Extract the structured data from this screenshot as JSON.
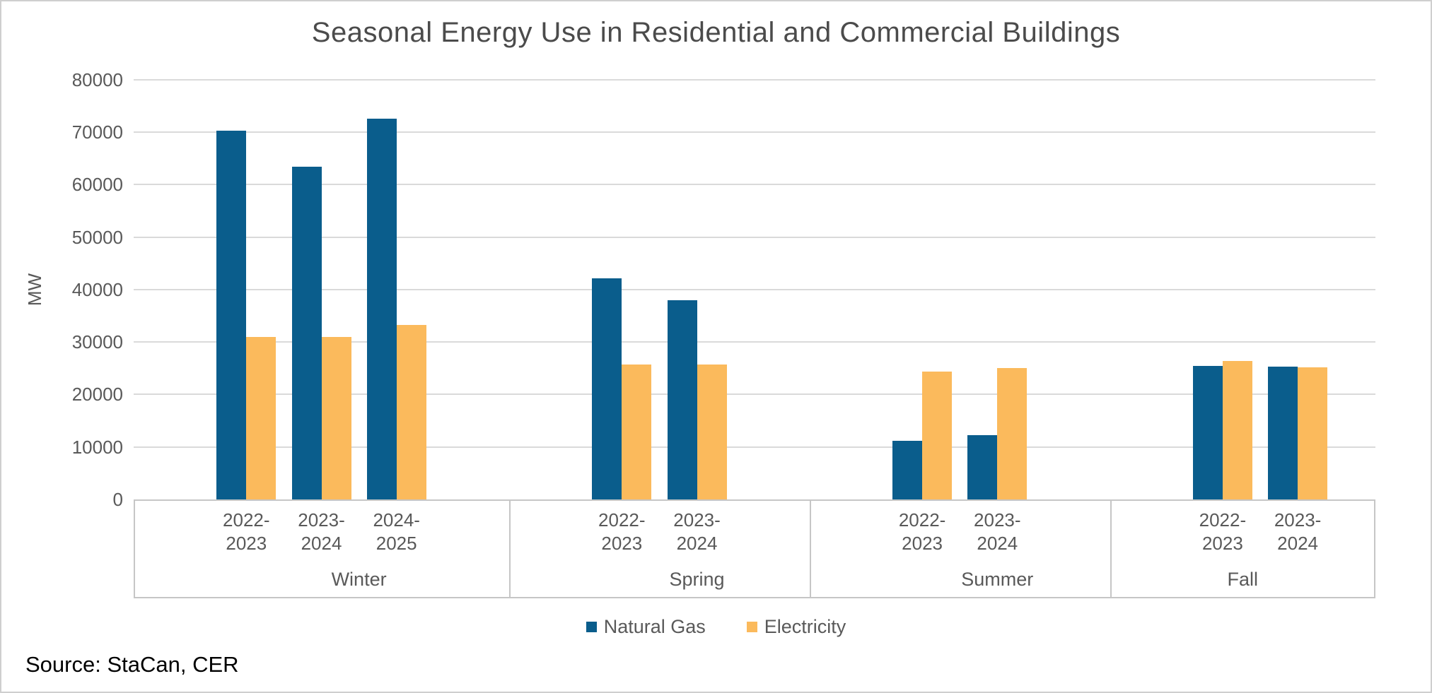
{
  "title": "Seasonal Energy Use in Residential and Commercial Buildings",
  "source_note": "Source: StaCan, CER",
  "y_axis": {
    "label": "MW",
    "tick_labels": [
      "80000",
      "70000",
      "60000",
      "50000",
      "40000",
      "30000",
      "20000",
      "10000",
      "0"
    ]
  },
  "legend": {
    "items": [
      {
        "label": "Natural Gas",
        "color": "#0a5d8c"
      },
      {
        "label": "Electricity",
        "color": "#fbba5c"
      }
    ]
  },
  "colors": {
    "natural_gas": "#0a5d8c",
    "electricity": "#fbba5c",
    "gridline": "#dadada",
    "axis_text": "#595959",
    "title_text": "#4b4b4b",
    "source_text": "#000000",
    "frame_border": "#cfcfcf",
    "category_box_border": "#c6c6c6"
  },
  "chart_data": {
    "type": "bar",
    "title": "Seasonal Energy Use in Residential and Commercial Buildings",
    "xlabel": "",
    "ylabel": "MW",
    "ylim": [
      0,
      80000
    ],
    "y_step": 10000,
    "grid": "horizontal",
    "legend_position": "bottom",
    "series_names": [
      "Natural Gas",
      "Electricity"
    ],
    "groups": [
      {
        "season": "Winter",
        "categories": [
          "2022-2023",
          "2023-2024",
          "2024-2025"
        ],
        "series": [
          {
            "name": "Natural Gas",
            "values": [
              70300,
              63400,
              72500
            ]
          },
          {
            "name": "Electricity",
            "values": [
              30900,
              30900,
              33300
            ]
          }
        ]
      },
      {
        "season": "Spring",
        "categories": [
          "2022-2023",
          "2023-2024"
        ],
        "series": [
          {
            "name": "Natural Gas",
            "values": [
              42100,
              37900
            ]
          },
          {
            "name": "Electricity",
            "values": [
              25700,
              25700
            ]
          }
        ]
      },
      {
        "season": "Summer",
        "categories": [
          "2022-2023",
          "2023-2024"
        ],
        "series": [
          {
            "name": "Natural Gas",
            "values": [
              11200,
              12200
            ]
          },
          {
            "name": "Electricity",
            "values": [
              24300,
              25000
            ]
          }
        ]
      },
      {
        "season": "Fall",
        "categories": [
          "2022-2023",
          "2023-2024"
        ],
        "series": [
          {
            "name": "Natural Gas",
            "values": [
              25400,
              25300
            ]
          },
          {
            "name": "Electricity",
            "values": [
              26400,
              25200
            ]
          }
        ]
      }
    ]
  }
}
